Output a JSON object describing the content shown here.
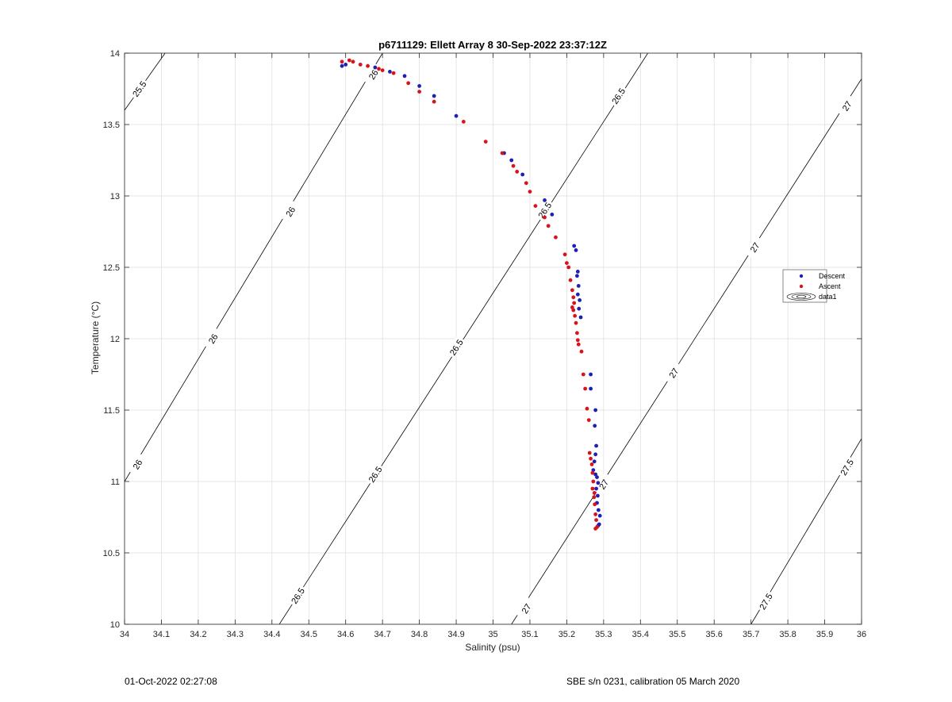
{
  "footer": {
    "left": "01-Oct-2022 02:27:08",
    "right": "SBE s/n 0231, calibration 05 March 2020"
  },
  "chart_data": {
    "type": "scatter",
    "title": "p6711129: Ellett Array 8 30-Sep-2022 23:37:12Z",
    "xlabel": "Salinity (psu)",
    "ylabel": "Temperature (°C)",
    "xlim": [
      34,
      36
    ],
    "ylim": [
      10,
      14
    ],
    "xticks": [
      34,
      34.1,
      34.2,
      34.3,
      34.4,
      34.5,
      34.6,
      34.7,
      34.8,
      34.9,
      35,
      35.1,
      35.2,
      35.3,
      35.4,
      35.5,
      35.6,
      35.7,
      35.8,
      35.9,
      36
    ],
    "xtick_labels": [
      "34",
      "34.1",
      "34.2",
      "34.3",
      "34.4",
      "34.5",
      "34.6",
      "34.7",
      "34.8",
      "34.9",
      "35",
      "35.1",
      "35.2",
      "35.3",
      "35.4",
      "35.5",
      "35.6",
      "35.7",
      "35.8",
      "35.9",
      "36"
    ],
    "yticks": [
      10,
      10.5,
      11,
      11.5,
      12,
      12.5,
      13,
      13.5,
      14
    ],
    "ytick_labels": [
      "10",
      "10.5",
      "11",
      "11.5",
      "12",
      "12.5",
      "13",
      "13.5",
      "14"
    ],
    "grid": true,
    "legend_position": "right",
    "colors": {
      "descent": "#1f1fb4",
      "ascent": "#d9131d",
      "contour": "#000000",
      "grid": "#dcdcdc"
    },
    "series": [
      {
        "name": "Descent",
        "color": "#1f1fb4",
        "x": [
          34.59,
          34.6,
          34.68,
          34.72,
          34.76,
          34.8,
          34.84,
          34.9,
          35.03,
          35.05,
          35.08,
          35.14,
          35.16,
          35.22,
          35.225,
          35.23,
          35.228,
          35.232,
          35.23,
          35.235,
          35.233,
          35.238,
          35.265,
          35.265,
          35.278,
          35.276,
          35.28,
          35.278,
          35.275,
          35.272,
          35.278,
          35.282,
          35.285,
          35.28,
          35.284,
          35.282,
          35.286,
          35.29,
          35.288,
          35.285
        ],
        "y": [
          13.91,
          13.92,
          13.9,
          13.87,
          13.84,
          13.77,
          13.7,
          13.56,
          13.3,
          13.25,
          13.15,
          12.97,
          12.87,
          12.65,
          12.62,
          12.47,
          12.44,
          12.37,
          12.31,
          12.27,
          12.21,
          12.15,
          11.75,
          11.65,
          11.5,
          11.39,
          11.25,
          11.19,
          11.14,
          11.08,
          11.05,
          11.03,
          10.99,
          10.95,
          10.9,
          10.85,
          10.8,
          10.76,
          10.7,
          10.69
        ]
      },
      {
        "name": "Ascent",
        "color": "#d9131d",
        "x": [
          34.59,
          34.61,
          34.62,
          34.64,
          34.66,
          34.69,
          34.7,
          34.73,
          34.77,
          34.8,
          34.84,
          34.92,
          34.98,
          35.025,
          35.055,
          35.065,
          35.09,
          35.1,
          35.115,
          35.14,
          35.15,
          35.17,
          35.195,
          35.2,
          35.205,
          35.21,
          35.215,
          35.218,
          35.22,
          35.215,
          35.218,
          35.222,
          35.225,
          35.228,
          35.23,
          35.232,
          35.24,
          35.245,
          35.25,
          35.255,
          35.26,
          35.262,
          35.265,
          35.268,
          35.27,
          35.272,
          35.27,
          35.275,
          35.274,
          35.276,
          35.278,
          35.28,
          35.282,
          35.278
        ],
        "y": [
          13.94,
          13.95,
          13.94,
          13.92,
          13.91,
          13.89,
          13.88,
          13.86,
          13.79,
          13.73,
          13.66,
          13.52,
          13.38,
          13.3,
          13.21,
          13.17,
          13.09,
          13.03,
          12.93,
          12.85,
          12.79,
          12.71,
          12.59,
          12.53,
          12.5,
          12.41,
          12.34,
          12.29,
          12.25,
          12.22,
          12.2,
          12.16,
          12.11,
          12.04,
          11.99,
          11.96,
          11.91,
          11.75,
          11.65,
          11.51,
          11.43,
          11.2,
          11.16,
          11.12,
          11.06,
          11.0,
          10.95,
          10.92,
          10.89,
          10.84,
          10.77,
          10.73,
          10.68,
          10.67
        ]
      }
    ],
    "legend_entries": [
      "Descent",
      "Ascent",
      "data1"
    ],
    "contours": [
      {
        "label": "25.5",
        "points": [
          [
            34,
            13.6
          ],
          [
            34.11,
            14
          ]
        ],
        "label_positions": [
          [
            34.04,
            13.75
          ]
        ]
      },
      {
        "label": "26",
        "points": [
          [
            34,
            11.0
          ],
          [
            34.7,
            14
          ]
        ],
        "label_positions": [
          [
            34.035,
            11.12
          ],
          [
            34.24,
            12.0
          ],
          [
            34.45,
            12.89
          ],
          [
            34.675,
            13.85
          ]
        ]
      },
      {
        "label": "26.5",
        "points": [
          [
            34.42,
            10
          ],
          [
            35.42,
            14
          ]
        ],
        "label_positions": [
          [
            34.47,
            10.2
          ],
          [
            34.68,
            11.05
          ],
          [
            34.9,
            11.94
          ],
          [
            35.14,
            12.9
          ],
          [
            35.34,
            13.7
          ]
        ]
      },
      {
        "label": "27",
        "points": [
          [
            35.05,
            10
          ],
          [
            36,
            13.82
          ]
        ],
        "label_positions": [
          [
            35.09,
            10.11
          ],
          [
            35.3,
            10.98
          ],
          [
            35.49,
            11.76
          ],
          [
            35.71,
            12.64
          ],
          [
            35.96,
            13.63
          ]
        ]
      },
      {
        "label": "27.5",
        "points": [
          [
            35.7,
            10
          ],
          [
            36,
            11.3
          ]
        ],
        "label_positions": [
          [
            35.74,
            10.16
          ],
          [
            35.96,
            11.1
          ]
        ]
      }
    ]
  }
}
